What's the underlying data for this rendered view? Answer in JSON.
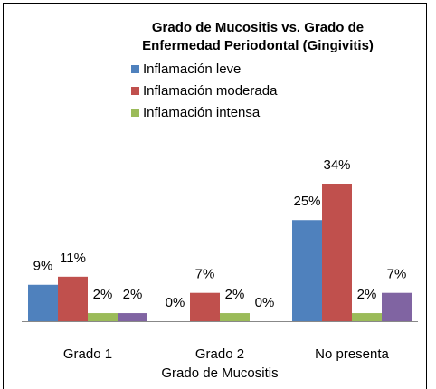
{
  "chart_data": {
    "type": "bar",
    "title": [
      "Grado de Mucositis vs. Grado de",
      "Enfermedad Periodontal (Gingivitis)"
    ],
    "x_label": "Grado de Mucositis",
    "categories": [
      "Grado 1",
      "Grado 2",
      "No presenta"
    ],
    "series": [
      {
        "name": "Inflamación leve",
        "color": "#4f81bd",
        "values": [
          9,
          0,
          25
        ],
        "value_labels": [
          "9%",
          "0%",
          "25%"
        ]
      },
      {
        "name": "Inflamación moderada",
        "color": "#c0504d",
        "values": [
          11,
          7,
          34
        ],
        "value_labels": [
          "11%",
          "7%",
          "34%"
        ]
      },
      {
        "name": "Inflamación intensa",
        "color": "#9bbb59",
        "values": [
          2,
          2,
          2
        ],
        "value_labels": [
          "2%",
          "2%",
          "2%"
        ]
      },
      {
        "color": "#8064a2",
        "values": [
          2,
          0,
          7
        ],
        "value_labels": [
          "2%",
          "0%",
          "7%"
        ]
      }
    ]
  }
}
